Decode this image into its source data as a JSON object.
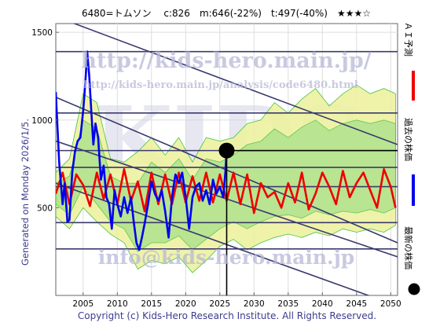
{
  "header": {
    "title": "6480=トムソン　 c:826　m:646(-22%)　t:497(-40%)　★★★☆"
  },
  "side_labels": {
    "generated": "Generated on Monday 2026/1/5.",
    "legend_ai": "ＡＩ予測",
    "legend_past": "過去の株価",
    "legend_latest": "最新の株価"
  },
  "watermarks": {
    "url": "http://kids-hero.main.jp/",
    "analysis": "http://kids-hero.main.jp/analysis/code6480.html",
    "email": "info@kids-hero.main.jp",
    "big": "KIDS"
  },
  "footer": {
    "copyright": "Copyright (c) Kids-Hero Research Institute. All Rights Reserved."
  },
  "colors": {
    "price": "#0000ee",
    "prediction": "#ee0000",
    "band_green": "#33bb33",
    "band_yellow": "#eef2a0",
    "trend": "#3a3a6e",
    "latest_marker": "#000000"
  },
  "chart_data": {
    "type": "line",
    "xlim": [
      2001,
      2051
    ],
    "ylim": [
      0,
      1550
    ],
    "x_ticks": [
      2005,
      2010,
      2015,
      2020,
      2025,
      2030,
      2035,
      2040,
      2045,
      2050
    ],
    "y_ticks": [
      500,
      1000,
      1500
    ],
    "grid": true,
    "legend_placement": "right",
    "latest": {
      "x": 2026.0,
      "y": 826
    },
    "horizontal_levels": [
      1390,
      1040,
      826,
      730,
      620,
      415,
      265
    ],
    "trend_lines": [
      {
        "x": [
          2001,
          2051
        ],
        "y": [
          1590,
          860
        ]
      },
      {
        "x": [
          2001,
          2051
        ],
        "y": [
          1130,
          300
        ]
      },
      {
        "x": [
          2001,
          2051
        ],
        "y": [
          880,
          220
        ]
      },
      {
        "x": [
          2001,
          2051
        ],
        "y": [
          640,
          -60
        ]
      }
    ],
    "series": [
      {
        "name": "過去の株価",
        "x": [
          2001.0,
          2001.5,
          2002.0,
          2002.3,
          2002.7,
          2003.0,
          2003.4,
          2003.8,
          2004.2,
          2004.6,
          2005.0,
          2005.3,
          2005.6,
          2005.9,
          2006.2,
          2006.5,
          2006.8,
          2007.2,
          2007.6,
          2008.0,
          2008.4,
          2008.8,
          2009.2,
          2009.6,
          2010.0,
          2010.5,
          2011.0,
          2011.5,
          2012.0,
          2012.4,
          2012.8,
          2013.2,
          2013.6,
          2014.0,
          2014.5,
          2015.0,
          2015.5,
          2016.0,
          2016.5,
          2017.0,
          2017.5,
          2018.0,
          2018.5,
          2019.0,
          2019.5,
          2020.0,
          2020.5,
          2021.0,
          2021.5,
          2022.0,
          2022.5,
          2023.0,
          2023.5,
          2024.0,
          2024.5,
          2025.0,
          2025.5,
          2025.8,
          2026.0
        ],
        "y": [
          1160,
          760,
          520,
          640,
          420,
          430,
          700,
          820,
          880,
          900,
          1050,
          1200,
          1390,
          1250,
          1050,
          860,
          980,
          900,
          660,
          740,
          560,
          520,
          380,
          600,
          520,
          450,
          560,
          470,
          560,
          420,
          300,
          260,
          330,
          410,
          520,
          650,
          580,
          540,
          600,
          480,
          330,
          560,
          690,
          640,
          700,
          560,
          380,
          560,
          620,
          640,
          540,
          600,
          520,
          660,
          580,
          620,
          560,
          700,
          826
        ]
      },
      {
        "name": "ＡＩ予測",
        "x": [
          2001.0,
          2002.0,
          2003.0,
          2004.0,
          2005.0,
          2006.0,
          2007.0,
          2008.0,
          2009.0,
          2010.0,
          2011.0,
          2012.0,
          2013.0,
          2014.0,
          2015.0,
          2016.0,
          2017.0,
          2018.0,
          2019.0,
          2020.0,
          2021.0,
          2022.0,
          2023.0,
          2024.0,
          2025.0,
          2026.0,
          2027.0,
          2028.0,
          2029.0,
          2030.0,
          2031.0,
          2032.0,
          2033.0,
          2034.0,
          2035.0,
          2036.0,
          2037.0,
          2038.0,
          2039.0,
          2040.0,
          2041.0,
          2042.0,
          2043.0,
          2044.0,
          2045.0,
          2046.0,
          2047.0,
          2048.0,
          2049.0,
          2050.0,
          2050.7
        ],
        "y": [
          580,
          700,
          520,
          690,
          630,
          510,
          700,
          550,
          690,
          520,
          720,
          540,
          650,
          480,
          700,
          520,
          690,
          520,
          700,
          530,
          680,
          540,
          700,
          530,
          690,
          540,
          700,
          520,
          690,
          470,
          640,
          560,
          590,
          500,
          640,
          530,
          700,
          490,
          580,
          700,
          620,
          520,
          710,
          560,
          640,
          700,
          600,
          500,
          720,
          620,
          500
        ]
      }
    ],
    "bands": {
      "x": [
        2001,
        2003,
        2005,
        2007,
        2009,
        2011,
        2013,
        2015,
        2017,
        2019,
        2021,
        2023,
        2025,
        2027,
        2029,
        2031,
        2033,
        2035,
        2037,
        2039,
        2041,
        2043,
        2045,
        2047,
        2049,
        2050.7
      ],
      "outer_low": [
        450,
        380,
        500,
        420,
        350,
        300,
        150,
        200,
        180,
        220,
        130,
        200,
        280,
        320,
        260,
        300,
        330,
        350,
        330,
        360,
        340,
        380,
        360,
        380,
        360,
        400
      ],
      "outer_high": [
        700,
        780,
        1150,
        1100,
        780,
        760,
        820,
        900,
        800,
        900,
        760,
        900,
        880,
        900,
        980,
        1000,
        1100,
        1040,
        1120,
        1180,
        1080,
        1150,
        1200,
        1150,
        1180,
        1150
      ],
      "inner_low": [
        520,
        460,
        620,
        520,
        420,
        380,
        250,
        300,
        300,
        340,
        260,
        320,
        380,
        420,
        380,
        420,
        450,
        460,
        440,
        480,
        460,
        480,
        470,
        490,
        470,
        500
      ],
      "inner_high": [
        640,
        680,
        1000,
        950,
        680,
        640,
        640,
        760,
        700,
        780,
        660,
        780,
        760,
        800,
        860,
        880,
        950,
        900,
        960,
        1000,
        940,
        980,
        1000,
        980,
        1000,
        980
      ]
    }
  }
}
